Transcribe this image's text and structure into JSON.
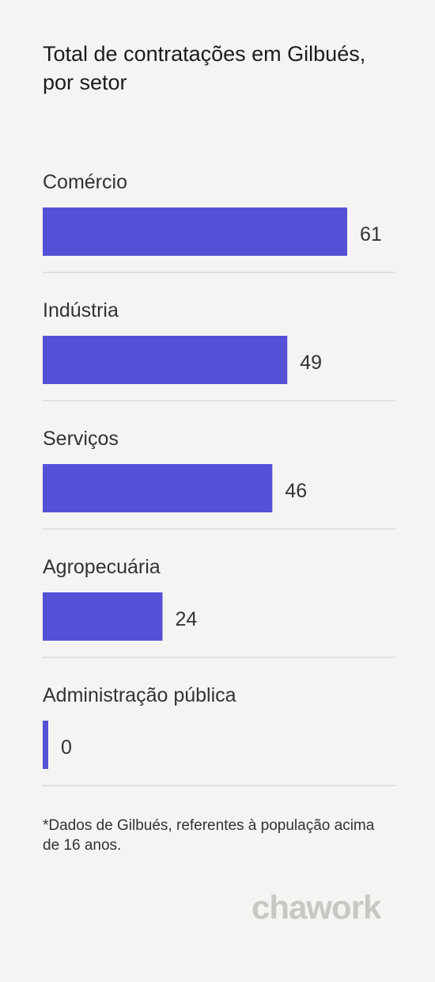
{
  "title": "Total de contratações em Gilbués, por setor",
  "chart_data": {
    "type": "bar",
    "orientation": "horizontal",
    "categories": [
      "Comércio",
      "Indústria",
      "Serviços",
      "Agropecuária",
      "Administração pública"
    ],
    "values": [
      61,
      49,
      46,
      24,
      0
    ],
    "data_labels": [
      "61",
      "49",
      "46",
      "24",
      "0"
    ],
    "bar_color": "#5551d6",
    "divider_color": "#e2e0dc",
    "grid": false,
    "legend": "none"
  },
  "footnote": "*Dados de Gilbués, referentes à população acima de 16 anos.",
  "logo": {
    "text": "chawork",
    "color": "#c9c7c1"
  }
}
